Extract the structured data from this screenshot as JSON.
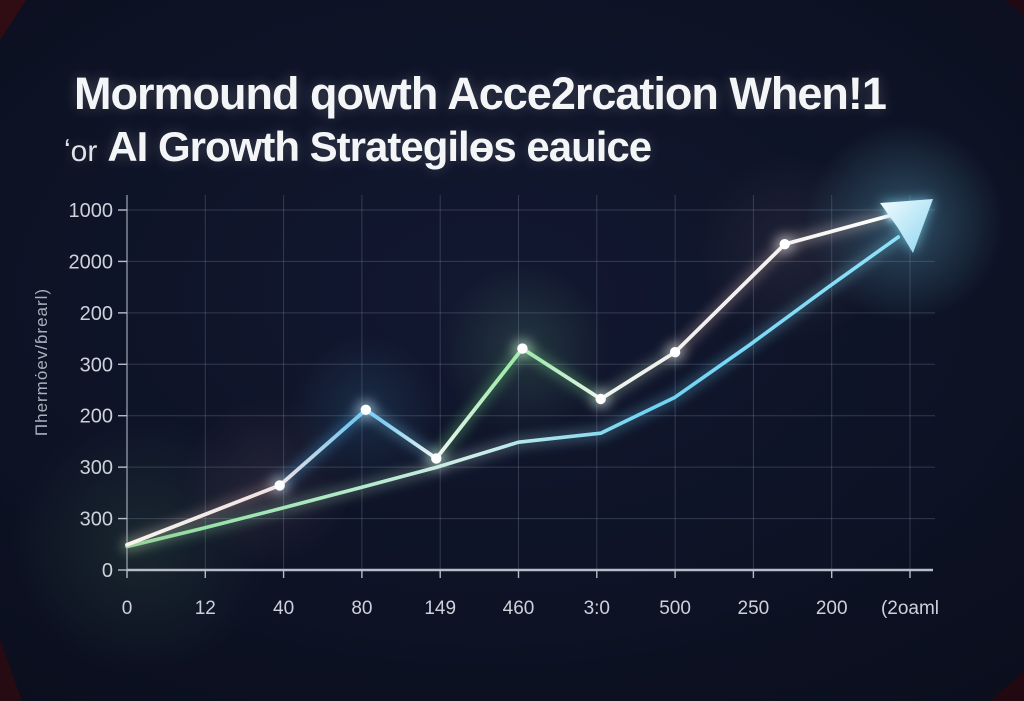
{
  "title": {
    "line1": "Mormound qowth Acce2rcation When!1",
    "line2_prefix": "ʻor",
    "line2_main": "AI Growth Strategilөs eauice"
  },
  "chart_data": {
    "type": "line",
    "title": "Mormound qowth Acce2rcation When!1 — ʻor AI Growth Strategilөs eauice",
    "xlabel": "",
    "ylabel": "Пhermȯev/ɓrearl)",
    "x_tick_labels": [
      "0",
      "12",
      "40",
      "80",
      "149",
      "460",
      "3:0",
      "500",
      "250",
      "200",
      "(2oaml"
    ],
    "y_tick_labels_top_to_bottom": [
      "1000",
      "2000",
      "200",
      "300",
      "200",
      "300",
      "300",
      "0"
    ],
    "ylim": [
      0,
      1000
    ],
    "x_index_range": [
      0,
      10
    ],
    "grid": true,
    "legend": "none",
    "series": [
      {
        "name": "highlight-zigzag-line",
        "type": "line-with-markers",
        "marker": "circle",
        "marker_color": "#ffffff",
        "points": [
          [
            0,
            70
          ],
          [
            1.95,
            235
          ],
          [
            3.05,
            445
          ],
          [
            3.95,
            310
          ],
          [
            5.05,
            615
          ],
          [
            6.05,
            475
          ],
          [
            7.0,
            605
          ],
          [
            8.4,
            905
          ],
          [
            9.75,
            985
          ]
        ],
        "point_colors": [
          "#f6f3ef",
          "#f0e2e0",
          "#5ec2f2",
          "#eef4f0",
          "#90e89e",
          "#ecf4ee",
          "#f3efec",
          "#f6f2f0",
          "#ffffff"
        ],
        "glow_colors": [
          "#c9a1a1",
          "#4db4ee",
          "#7cc8e8",
          "#74dd86",
          "#7fe090",
          "#b8d8c0",
          "#d4b4b4",
          "#e6d8d2"
        ]
      },
      {
        "name": "smooth-compound-line",
        "type": "line",
        "points": [
          [
            0,
            65
          ],
          [
            0.95,
            115
          ],
          [
            1.95,
            170
          ],
          [
            3.0,
            230
          ],
          [
            3.95,
            285
          ],
          [
            5.0,
            355
          ],
          [
            6.05,
            380
          ],
          [
            7.0,
            480
          ],
          [
            7.95,
            625
          ],
          [
            8.95,
            785
          ],
          [
            9.85,
            925
          ]
        ],
        "gradient_stops": [
          [
            "0%",
            "#86e096"
          ],
          [
            "45%",
            "#cdeee8"
          ],
          [
            "68%",
            "#6fd3f2"
          ],
          [
            "100%",
            "#8fe2f9"
          ]
        ]
      }
    ],
    "annotations": {
      "end_arrow": {
        "shape": "arrowhead",
        "direction": "up-right",
        "fill_light": "#eefaff",
        "fill_dark": "#93d8f0",
        "glow": "#7fdbf7"
      }
    },
    "colors": {
      "background": "#0a0e1b",
      "grid": "#7d8ca5",
      "axis": "#b6bcc8",
      "tick_label": "#cdd2da",
      "axis_title": "#aab0bb",
      "title_text": "#f3f5f7",
      "corner_accent": "#2e0c12"
    }
  }
}
